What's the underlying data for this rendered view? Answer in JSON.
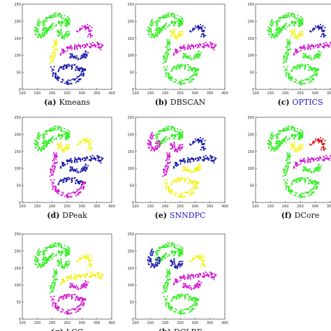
{
  "colors": {
    "green": "#33ee22",
    "yellow": "#f2f21a",
    "magenta": "#d21ad2",
    "blue": "#1a1aa8",
    "red": "#dd1111",
    "caption_link": "#1a1ab8",
    "caption_text": "#111111"
  },
  "chart_data": {
    "type": "scatter",
    "xlim": [
      100,
      400
    ],
    "ylim": [
      0,
      250
    ],
    "xticks": [
      "100",
      "150",
      "200",
      "250",
      "300",
      "350",
      "400"
    ],
    "yticks": [
      "0",
      "50",
      "100",
      "150",
      "200",
      "250"
    ],
    "clusters": {
      "top_arc": [
        [
          165,
          185
        ],
        [
          175,
          200
        ],
        [
          190,
          210
        ],
        [
          205,
          217
        ],
        [
          220,
          218
        ],
        [
          235,
          213
        ],
        [
          248,
          205
        ],
        [
          255,
          196
        ],
        [
          252,
          190
        ],
        [
          240,
          192
        ],
        [
          228,
          195
        ],
        [
          215,
          192
        ],
        [
          200,
          185
        ],
        [
          188,
          178
        ],
        [
          175,
          172
        ]
      ],
      "left_hook": [
        [
          160,
          200
        ],
        [
          150,
          190
        ],
        [
          145,
          175
        ],
        [
          148,
          162
        ],
        [
          160,
          155
        ],
        [
          172,
          160
        ],
        [
          178,
          170
        ],
        [
          174,
          180
        ]
      ],
      "inner_arc": [
        [
          225,
          175
        ],
        [
          222,
          165
        ],
        [
          228,
          158
        ],
        [
          240,
          155
        ],
        [
          250,
          160
        ],
        [
          256,
          168
        ]
      ],
      "right_bump": [
        [
          288,
          170
        ],
        [
          300,
          180
        ],
        [
          315,
          184
        ],
        [
          326,
          178
        ],
        [
          330,
          168
        ],
        [
          326,
          158
        ]
      ],
      "right_line": [
        [
          228,
          108
        ],
        [
          240,
          115
        ],
        [
          255,
          120
        ],
        [
          270,
          124
        ],
        [
          285,
          126
        ],
        [
          300,
          127
        ],
        [
          315,
          128
        ],
        [
          330,
          130
        ],
        [
          345,
          132
        ],
        [
          360,
          128
        ],
        [
          368,
          118
        ]
      ],
      "tail": [
        [
          258,
          102
        ],
        [
          270,
          96
        ],
        [
          285,
          92
        ],
        [
          300,
          94
        ],
        [
          310,
          100
        ],
        [
          318,
          108
        ]
      ],
      "s_upper": [
        [
          208,
          150
        ],
        [
          213,
          135
        ],
        [
          210,
          120
        ],
        [
          205,
          105
        ],
        [
          200,
          90
        ],
        [
          198,
          75
        ]
      ],
      "s_lower": [
        [
          200,
          62
        ],
        [
          206,
          48
        ],
        [
          218,
          35
        ],
        [
          232,
          26
        ],
        [
          250,
          20
        ],
        [
          268,
          22
        ],
        [
          284,
          28
        ],
        [
          296,
          38
        ],
        [
          304,
          50
        ],
        [
          308,
          62
        ]
      ],
      "basin": [
        [
          218,
          58
        ],
        [
          232,
          62
        ],
        [
          246,
          66
        ],
        [
          260,
          68
        ],
        [
          274,
          64
        ],
        [
          288,
          60
        ],
        [
          300,
          56
        ]
      ]
    },
    "panels": [
      {
        "letter": "(a)",
        "name": "Kmeans",
        "highlight": false,
        "assign": {
          "top_arc": "green",
          "left_hook": "green",
          "inner_arc": "green",
          "right_bump": "magenta",
          "right_line": "magenta",
          "tail": "blue",
          "s_upper": "yellow",
          "s_lower": "blue",
          "basin": "blue"
        }
      },
      {
        "letter": "(b)",
        "name": "DBSCAN",
        "highlight": false,
        "assign": {
          "top_arc": "green",
          "left_hook": "green",
          "inner_arc": "yellow",
          "right_bump": "blue",
          "right_line": "magenta",
          "tail": "green",
          "s_upper": "green",
          "s_lower": "green",
          "basin": "green"
        }
      },
      {
        "letter": "(c)",
        "name": "OPTICS",
        "highlight": true,
        "assign": {
          "top_arc": "green",
          "left_hook": "green",
          "inner_arc": "yellow",
          "right_bump": "blue",
          "right_line": "magenta",
          "tail": "green",
          "s_upper": "green",
          "s_lower": "green",
          "basin": "green"
        }
      },
      {
        "letter": "(d)",
        "name": "DPeak",
        "highlight": false,
        "assign": {
          "top_arc": "green",
          "left_hook": "green",
          "inner_arc": "yellow",
          "right_bump": "yellow",
          "right_line": "blue",
          "tail": "blue",
          "s_upper": "magenta",
          "s_lower": "magenta",
          "basin": "blue"
        }
      },
      {
        "letter": "(e)",
        "name": "SNNDPC",
        "highlight": true,
        "assign": {
          "top_arc": "green",
          "left_hook": "magenta",
          "inner_arc": "magenta",
          "right_bump": "blue",
          "right_line": "blue",
          "tail": "yellow",
          "s_upper": "magenta",
          "s_lower": "yellow",
          "basin": "yellow"
        }
      },
      {
        "letter": "(f)",
        "name": "DCore",
        "highlight": false,
        "assign": {
          "top_arc": "green",
          "left_hook": "green",
          "inner_arc": "yellow",
          "right_bump": "red",
          "right_line": "magenta",
          "tail": "green",
          "s_upper": "green",
          "s_lower": "green",
          "basin": "green"
        }
      },
      {
        "letter": "(g)",
        "name": "LGC",
        "highlight": false,
        "assign": {
          "top_arc": "green",
          "left_hook": "green",
          "inner_arc": "green",
          "right_bump": "yellow",
          "right_line": "yellow",
          "tail": "magenta",
          "s_upper": "green",
          "s_lower": "magenta",
          "basin": "magenta"
        }
      },
      {
        "letter": "(h)",
        "name": "DCLRF",
        "highlight": false,
        "assign": {
          "top_arc": "green",
          "left_hook": "blue",
          "inner_arc": "blue",
          "right_bump": "yellow",
          "right_line": "magenta",
          "tail": "magenta",
          "s_upper": "green",
          "s_lower": "green",
          "basin": "green"
        }
      }
    ]
  }
}
